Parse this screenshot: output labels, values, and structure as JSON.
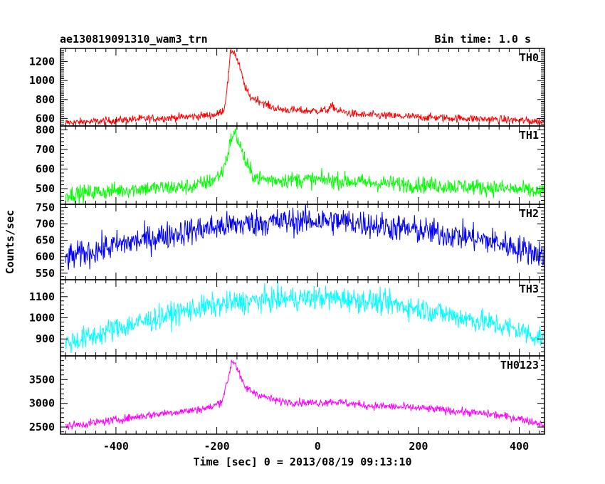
{
  "chart_data": {
    "type": "line",
    "title": "ae130819091310_wam3_trn",
    "bin_time_label": "Bin time: 1.0 s",
    "xlabel": "Time [sec] 0 = 2013/08/19 09:13:10",
    "ylabel": "Counts/sec",
    "xlim": [
      -510,
      450
    ],
    "xticks": [
      -400,
      -200,
      0,
      200,
      400
    ],
    "grid": false,
    "panels": [
      {
        "name": "TH0",
        "color": "#ff0000",
        "ylim": [
          520,
          1340
        ],
        "yticks": [
          600,
          800,
          1000,
          1200
        ],
        "points": [
          [
            -500,
            555
          ],
          [
            -450,
            565
          ],
          [
            -400,
            580
          ],
          [
            -350,
            595
          ],
          [
            -300,
            605
          ],
          [
            -250,
            620
          ],
          [
            -200,
            640
          ],
          [
            -185,
            700
          ],
          [
            -178,
            1000
          ],
          [
            -172,
            1320
          ],
          [
            -165,
            1300
          ],
          [
            -155,
            1150
          ],
          [
            -145,
            950
          ],
          [
            -135,
            830
          ],
          [
            -120,
            800
          ],
          [
            -100,
            740
          ],
          [
            -80,
            700
          ],
          [
            -60,
            690
          ],
          [
            -40,
            685
          ],
          [
            -20,
            680
          ],
          [
            0,
            680
          ],
          [
            20,
            690
          ],
          [
            30,
            730
          ],
          [
            40,
            680
          ],
          [
            80,
            640
          ],
          [
            150,
            625
          ],
          [
            200,
            615
          ],
          [
            250,
            605
          ],
          [
            300,
            600
          ],
          [
            350,
            590
          ],
          [
            400,
            580
          ],
          [
            450,
            565
          ]
        ],
        "noise": 30
      },
      {
        "name": "TH1",
        "color": "#00ff00",
        "ylim": [
          420,
          820
        ],
        "yticks": [
          500,
          600,
          700,
          800
        ],
        "points": [
          [
            -500,
            470
          ],
          [
            -450,
            480
          ],
          [
            -400,
            490
          ],
          [
            -350,
            500
          ],
          [
            -300,
            505
          ],
          [
            -250,
            510
          ],
          [
            -210,
            540
          ],
          [
            -190,
            580
          ],
          [
            -178,
            680
          ],
          [
            -170,
            770
          ],
          [
            -163,
            780
          ],
          [
            -155,
            730
          ],
          [
            -145,
            650
          ],
          [
            -135,
            590
          ],
          [
            -120,
            555
          ],
          [
            -100,
            545
          ],
          [
            -50,
            545
          ],
          [
            0,
            545
          ],
          [
            50,
            540
          ],
          [
            100,
            530
          ],
          [
            150,
            525
          ],
          [
            200,
            520
          ],
          [
            250,
            515
          ],
          [
            300,
            510
          ],
          [
            350,
            505
          ],
          [
            400,
            495
          ],
          [
            450,
            480
          ]
        ],
        "noise": 30
      },
      {
        "name": "TH2",
        "color": "#0000ff",
        "ylim": [
          530,
          760
        ],
        "yticks": [
          550,
          600,
          650,
          700,
          750
        ],
        "points": [
          [
            -500,
            595
          ],
          [
            -450,
            615
          ],
          [
            -400,
            635
          ],
          [
            -350,
            650
          ],
          [
            -300,
            665
          ],
          [
            -250,
            680
          ],
          [
            -200,
            690
          ],
          [
            -150,
            700
          ],
          [
            -100,
            705
          ],
          [
            -50,
            708
          ],
          [
            0,
            710
          ],
          [
            50,
            708
          ],
          [
            100,
            700
          ],
          [
            150,
            690
          ],
          [
            200,
            680
          ],
          [
            250,
            670
          ],
          [
            300,
            660
          ],
          [
            350,
            645
          ],
          [
            400,
            625
          ],
          [
            450,
            605
          ]
        ],
        "noise": 30
      },
      {
        "name": "TH3",
        "color": "#00ffff",
        "ylim": [
          820,
          1180
        ],
        "yticks": [
          900,
          1000,
          1100
        ],
        "points": [
          [
            -500,
            880
          ],
          [
            -450,
            910
          ],
          [
            -400,
            950
          ],
          [
            -350,
            980
          ],
          [
            -300,
            1010
          ],
          [
            -250,
            1040
          ],
          [
            -200,
            1060
          ],
          [
            -150,
            1075
          ],
          [
            -100,
            1085
          ],
          [
            -50,
            1090
          ],
          [
            0,
            1095
          ],
          [
            50,
            1090
          ],
          [
            100,
            1080
          ],
          [
            150,
            1065
          ],
          [
            200,
            1045
          ],
          [
            250,
            1020
          ],
          [
            300,
            995
          ],
          [
            350,
            970
          ],
          [
            400,
            940
          ],
          [
            450,
            900
          ]
        ],
        "noise": 40
      },
      {
        "name": "TH0123",
        "color": "#ff00ff",
        "ylim": [
          2350,
          4000
        ],
        "yticks": [
          2500,
          3000,
          3500
        ],
        "points": [
          [
            -500,
            2520
          ],
          [
            -450,
            2580
          ],
          [
            -400,
            2650
          ],
          [
            -350,
            2730
          ],
          [
            -300,
            2800
          ],
          [
            -250,
            2850
          ],
          [
            -210,
            2920
          ],
          [
            -190,
            3050
          ],
          [
            -178,
            3500
          ],
          [
            -170,
            3900
          ],
          [
            -163,
            3850
          ],
          [
            -155,
            3600
          ],
          [
            -145,
            3350
          ],
          [
            -130,
            3250
          ],
          [
            -110,
            3150
          ],
          [
            -80,
            3050
          ],
          [
            -40,
            3020
          ],
          [
            0,
            3010
          ],
          [
            30,
            3040
          ],
          [
            60,
            3000
          ],
          [
            100,
            2950
          ],
          [
            150,
            2930
          ],
          [
            200,
            2900
          ],
          [
            250,
            2860
          ],
          [
            300,
            2810
          ],
          [
            350,
            2760
          ],
          [
            400,
            2680
          ],
          [
            450,
            2550
          ]
        ],
        "noise": 60
      }
    ]
  }
}
